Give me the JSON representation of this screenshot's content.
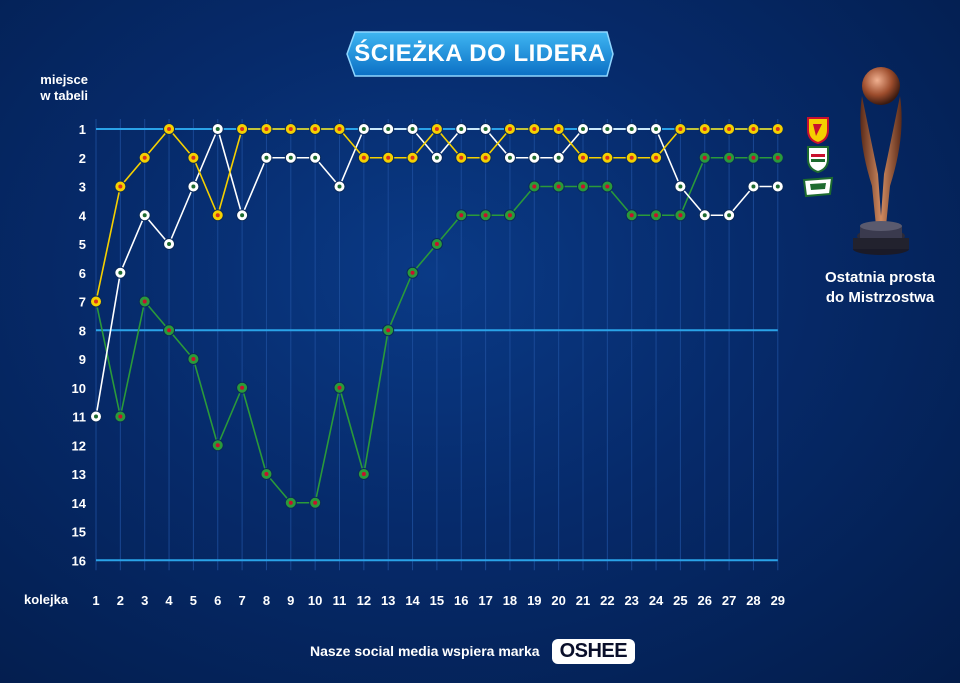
{
  "title": "ŚCIEŻKA DO LIDERA",
  "y_axis_label_line1": "miejsce",
  "y_axis_label_line2": "w tabeli",
  "x_axis_label": "kolejka",
  "trophy_caption_line1": "Ostatnia prosta",
  "trophy_caption_line2": "do Mistrzostwa",
  "footer_text": "Nasze social media wspiera marka",
  "brand": "OSHEE",
  "icons": [
    "trophy-icon",
    "jagiellonia-crest-icon",
    "legia-crest-icon",
    "lechia-crest-icon"
  ],
  "colors": {
    "yellow_series": "#f5d000",
    "white_series": "#ffffff",
    "green_series": "#2a9a3a",
    "highlight_line": "#2aa3e8"
  },
  "chart_data": {
    "type": "line",
    "x": [
      1,
      2,
      3,
      4,
      5,
      6,
      7,
      8,
      9,
      10,
      11,
      12,
      13,
      14,
      15,
      16,
      17,
      18,
      19,
      20,
      21,
      22,
      23,
      24,
      25,
      26,
      27,
      28,
      29
    ],
    "y_ticks": [
      1,
      2,
      3,
      4,
      5,
      6,
      7,
      8,
      9,
      10,
      11,
      12,
      13,
      14,
      15,
      16
    ],
    "ylim": [
      1,
      16
    ],
    "y_inverted": true,
    "reference_lines": [
      1,
      8,
      16
    ],
    "series": [
      {
        "color": "#f5d000",
        "values": [
          7,
          3,
          2,
          1,
          2,
          4,
          1,
          1,
          1,
          1,
          1,
          2,
          2,
          2,
          1,
          2,
          2,
          1,
          1,
          1,
          2,
          2,
          2,
          2,
          1,
          1,
          1,
          1,
          1
        ]
      },
      {
        "color": "#ffffff",
        "values": [
          11,
          6,
          4,
          5,
          3,
          1,
          4,
          2,
          2,
          2,
          3,
          1,
          1,
          1,
          2,
          1,
          1,
          2,
          2,
          2,
          1,
          1,
          1,
          1,
          3,
          4,
          4,
          3,
          3
        ]
      },
      {
        "color": "#2a9a3a",
        "values": [
          7,
          11,
          7,
          8,
          9,
          12,
          10,
          13,
          14,
          14,
          10,
          13,
          8,
          6,
          5,
          4,
          4,
          4,
          3,
          3,
          3,
          3,
          4,
          4,
          4,
          2,
          2,
          2,
          2
        ]
      }
    ]
  }
}
